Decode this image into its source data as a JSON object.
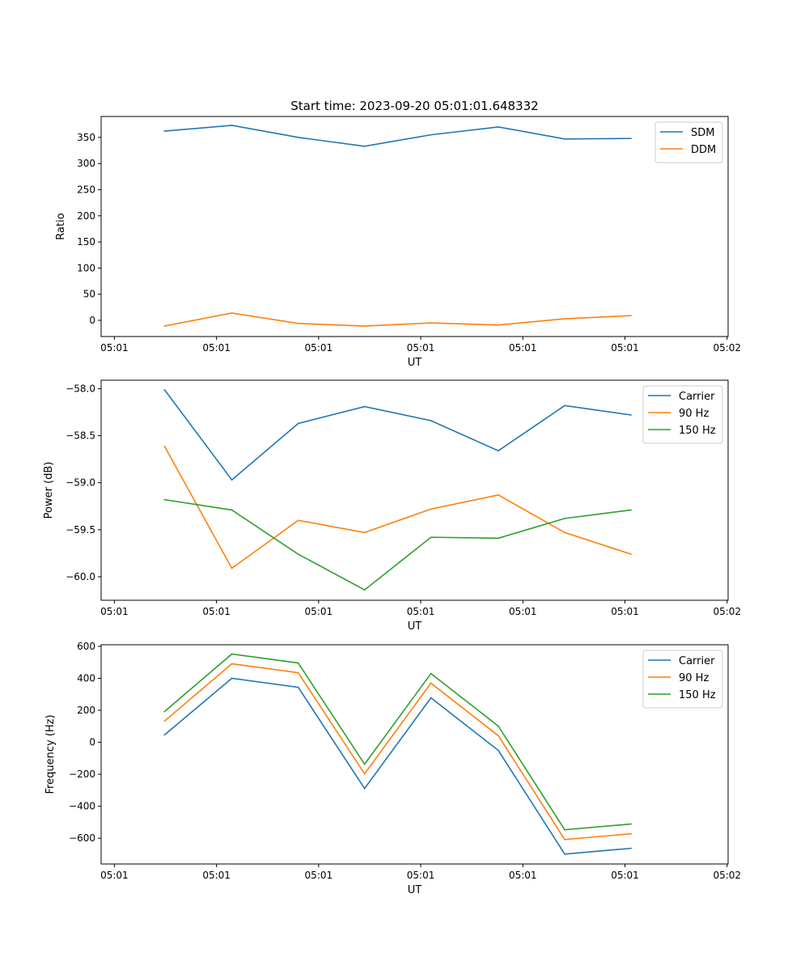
{
  "chart_data": [
    {
      "type": "line",
      "title": "Start time: 2023-09-20 05:01:01.648332",
      "xlabel": "UT",
      "ylabel": "Ratio",
      "xticks": [
        0,
        1,
        2,
        3,
        4,
        5,
        6
      ],
      "xtick_labels": [
        "05:01",
        "05:01",
        "05:01",
        "05:01",
        "05:01",
        "05:01",
        "05:02"
      ],
      "xlim": [
        -0.13,
        6.01
      ],
      "ylim": [
        -31,
        390
      ],
      "yticks": [
        0,
        50,
        100,
        150,
        200,
        250,
        300,
        350
      ],
      "x": [
        0.49,
        1.15,
        1.8,
        2.45,
        3.1,
        3.76,
        4.41,
        5.06
      ],
      "legend": "top-right",
      "series": [
        {
          "name": "SDM",
          "color": "#1f77b4",
          "values": [
            362,
            373,
            350,
            333,
            355,
            370,
            347,
            348
          ]
        },
        {
          "name": "DDM",
          "color": "#ff7f0e",
          "values": [
            -11,
            14,
            -6,
            -11,
            -5,
            -9,
            3,
            9
          ]
        }
      ]
    },
    {
      "type": "line",
      "title": "",
      "xlabel": "UT",
      "ylabel": "Power (dB)",
      "xticks": [
        0,
        1,
        2,
        3,
        4,
        5,
        6
      ],
      "xtick_labels": [
        "05:01",
        "05:01",
        "05:01",
        "05:01",
        "05:01",
        "05:01",
        "05:02"
      ],
      "xlim": [
        -0.13,
        6.01
      ],
      "ylim": [
        -60.25,
        -57.91
      ],
      "yticks": [
        -60.0,
        -59.5,
        -59.0,
        -58.5,
        -58.0
      ],
      "x": [
        0.49,
        1.15,
        1.8,
        2.45,
        3.1,
        3.76,
        4.41,
        5.06
      ],
      "legend": "top-right",
      "series": [
        {
          "name": "Carrier",
          "color": "#1f77b4",
          "values": [
            -58.01,
            -58.97,
            -58.37,
            -58.19,
            -58.34,
            -58.66,
            -58.18,
            -58.28
          ]
        },
        {
          "name": "90 Hz",
          "color": "#ff7f0e",
          "values": [
            -58.61,
            -59.91,
            -59.4,
            -59.53,
            -59.28,
            -59.13,
            -59.53,
            -59.76
          ]
        },
        {
          "name": "150 Hz",
          "color": "#2ca02c",
          "values": [
            -59.18,
            -59.29,
            -59.76,
            -60.14,
            -59.58,
            -59.59,
            -59.38,
            -59.29
          ]
        }
      ]
    },
    {
      "type": "line",
      "title": "",
      "xlabel": "UT",
      "ylabel": "Frequency (Hz)",
      "xticks": [
        0,
        1,
        2,
        3,
        4,
        5,
        6
      ],
      "xtick_labels": [
        "05:01",
        "05:01",
        "05:01",
        "05:01",
        "05:01",
        "05:01",
        "05:02"
      ],
      "xlim": [
        -0.13,
        6.01
      ],
      "ylim": [
        -761,
        610
      ],
      "yticks": [
        -600,
        -400,
        -200,
        0,
        200,
        400,
        600
      ],
      "x": [
        0.49,
        1.15,
        1.8,
        2.45,
        3.1,
        3.76,
        4.41,
        5.06
      ],
      "legend": "top-right",
      "series": [
        {
          "name": "Carrier",
          "color": "#1f77b4",
          "values": [
            46,
            400,
            344,
            -289,
            278,
            -51,
            -699,
            -663
          ]
        },
        {
          "name": "90 Hz",
          "color": "#ff7f0e",
          "values": [
            132,
            491,
            435,
            -197,
            370,
            41,
            -608,
            -572
          ]
        },
        {
          "name": "150 Hz",
          "color": "#2ca02c",
          "values": [
            192,
            552,
            496,
            -137,
            430,
            101,
            -547,
            -511
          ]
        }
      ]
    }
  ]
}
